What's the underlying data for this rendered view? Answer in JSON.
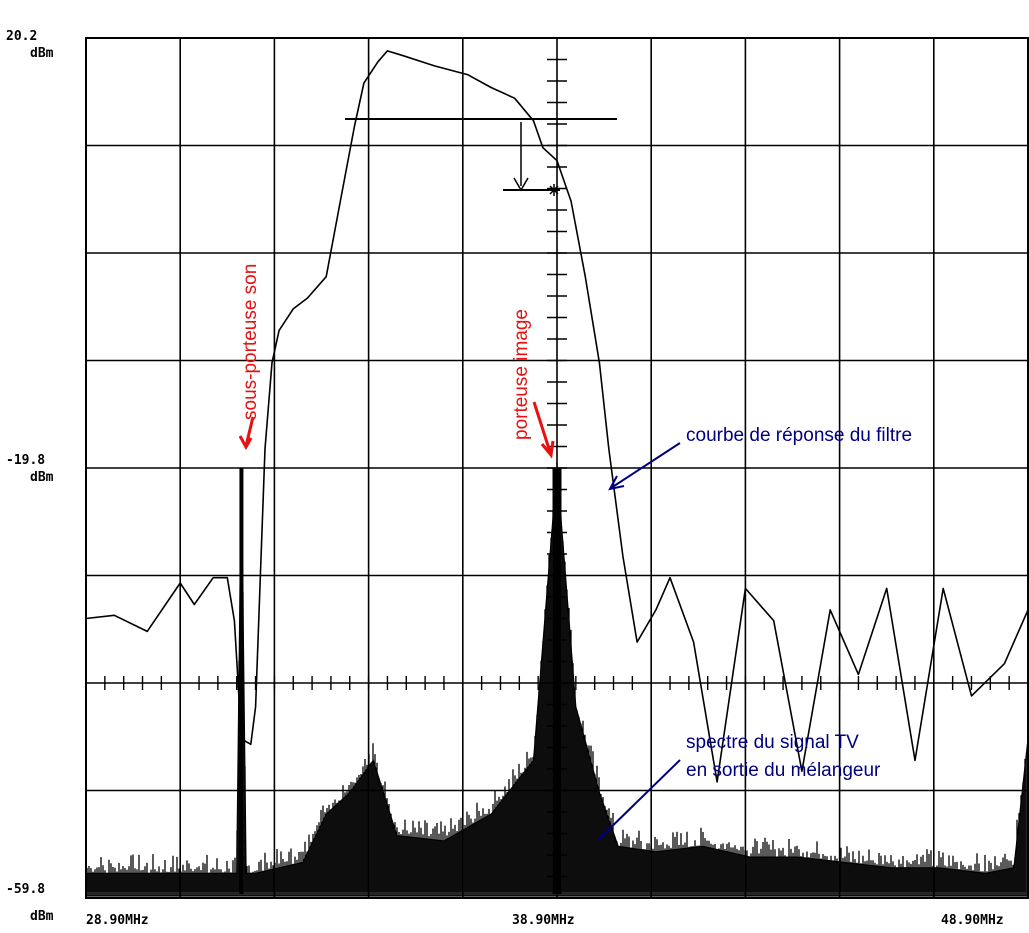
{
  "chart_data": {
    "type": "line",
    "title": "",
    "xlabel": "",
    "ylabel": "",
    "xlim": [
      28.9,
      48.9
    ],
    "ylim": [
      -59.8,
      20.2
    ],
    "x_unit": "MHz",
    "y_unit": "dBm",
    "grid": true,
    "y_ticks": [
      {
        "value": 20.2,
        "label": "20.2",
        "unit": "dBm"
      },
      {
        "value": -19.8,
        "label": "-19.8",
        "unit": "dBm"
      },
      {
        "value": -59.8,
        "label": "-59.8",
        "unit": "dBm"
      }
    ],
    "x_ticks": [
      {
        "value": 28.9,
        "label": "28.90MHz"
      },
      {
        "value": 38.9,
        "label": "38.90MHz"
      },
      {
        "value": 48.9,
        "label": "48.90MHz"
      }
    ],
    "annotations": [
      {
        "text": "sous-porteuse son",
        "color": "#e81010",
        "points_to": {
          "x": 32.2,
          "y": -19.8
        }
      },
      {
        "text": "porteuse image",
        "color": "#e81010",
        "points_to": {
          "x": 38.9,
          "y": -19.8
        }
      },
      {
        "text": "courbe de réponse du filtre",
        "color": "#000080",
        "points_to": {
          "x": 40.1,
          "y": -22.5
        }
      },
      {
        "text": "spectre du signal TV",
        "color": "#000080",
        "points_to": {
          "x": 39.9,
          "y": -52
        }
      },
      {
        "text": "en sortie du mélangeur",
        "color": "#000080",
        "points_to": null
      }
    ],
    "series": [
      {
        "role": "filter-response",
        "x": [
          28.9,
          29.5,
          30.2,
          30.9,
          31.2,
          31.6,
          31.9,
          32.05,
          32.2,
          32.4,
          32.5,
          32.6,
          32.7,
          32.85,
          33.0,
          33.3,
          33.6,
          34.0,
          34.3,
          34.6,
          34.8,
          35.1,
          35.3,
          35.6,
          36.3,
          37.0,
          37.5,
          38.0,
          38.4,
          38.6,
          38.9,
          39.2,
          39.5,
          39.8,
          40.0,
          40.3,
          40.6,
          41.0,
          41.3,
          41.8,
          42.3,
          42.9,
          43.5,
          44.1,
          44.7,
          45.3,
          45.9,
          46.5,
          47.1,
          47.7,
          48.4,
          48.9
        ],
        "y": [
          -33.8,
          -33.5,
          -35.0,
          -30.5,
          -32.5,
          -30.0,
          -30.0,
          -34.0,
          -45.0,
          -45.5,
          -42.0,
          -30.0,
          -18.0,
          -10.0,
          -7.0,
          -5.0,
          -4.0,
          -2.0,
          5.0,
          12.0,
          16.0,
          18.0,
          19.0,
          18.6,
          17.6,
          16.8,
          15.6,
          14.6,
          12.5,
          10.0,
          8.8,
          5.0,
          -2.0,
          -10.0,
          -18.0,
          -28.0,
          -36.0,
          -33.0,
          -30.0,
          -36.0,
          -49.0,
          -31.0,
          -34.0,
          -48.0,
          -33.0,
          -39.0,
          -31.0,
          -47.0,
          -31.0,
          -41.0,
          -38.0,
          -33.0
        ]
      },
      {
        "role": "tv-signal-spectrum",
        "x": [
          28.9,
          30.5,
          32.1,
          32.2,
          32.3,
          32.5,
          33.5,
          34.0,
          34.5,
          35.0,
          35.5,
          36.5,
          37.5,
          38.4,
          38.9,
          39.3,
          39.8,
          40.2,
          41.0,
          42.0,
          43.0,
          44.0,
          45.0,
          46.0,
          47.0,
          48.0,
          48.6,
          48.9
        ],
        "y": [
          -57.5,
          -57.5,
          -57.5,
          -20.0,
          -57.5,
          -57.5,
          -56.5,
          -52.0,
          -50.0,
          -47.0,
          -54.0,
          -54.5,
          -52.0,
          -47.0,
          -19.8,
          -42.0,
          -50.0,
          -55.0,
          -55.5,
          -55.0,
          -56.0,
          -56.0,
          -56.5,
          -57.0,
          -57.0,
          -57.5,
          -57.0,
          -45.0
        ]
      }
    ]
  }
}
